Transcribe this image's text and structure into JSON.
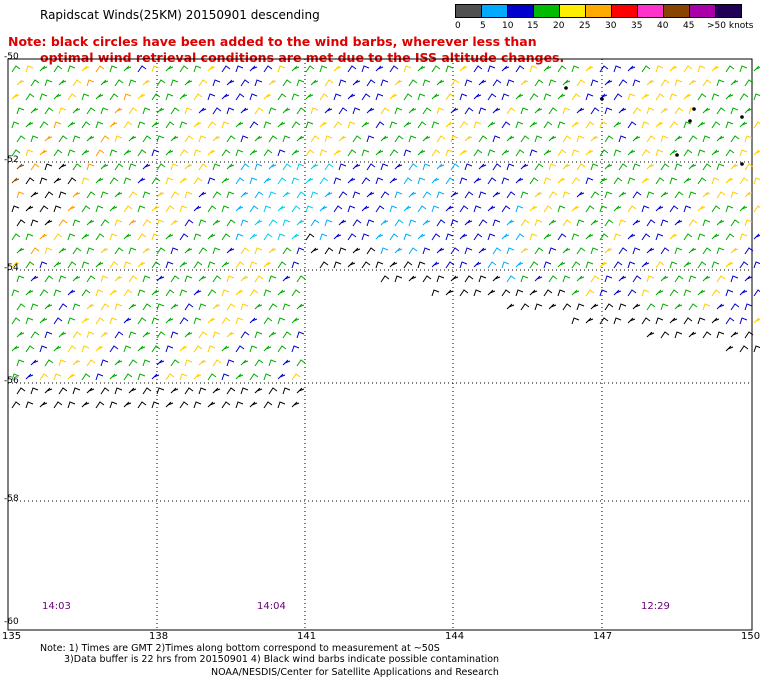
{
  "header": {
    "title": "Rapidscat Winds(25KM) 20150901 descending",
    "note_line1": "Note: black circles have been added to the wind barbs, wherever less than",
    "note_line2": "optimal wind retrieval conditions are met due to the ISS altitude changes."
  },
  "legend": {
    "colors": [
      "#505050",
      "#00aaff",
      "#0000cc",
      "#00bb00",
      "#ffee00",
      "#ffaa00",
      "#ff0000",
      "#ff33cc",
      "#884400",
      "#aa00aa",
      "#220055"
    ],
    "labels": [
      "0",
      "5",
      "10",
      "15",
      "20",
      "25",
      "30",
      "35",
      "40",
      "45",
      ">50 knots"
    ]
  },
  "axes": {
    "lat_ticks": [
      "-50",
      "-52",
      "-54",
      "-56",
      "-58",
      "-60"
    ],
    "lon_ticks": [
      "135",
      "138",
      "141",
      "144",
      "147",
      "150"
    ]
  },
  "times": [
    "14:03",
    "14:04",
    "12:29"
  ],
  "footer": {
    "line1": "Note: 1) Times are GMT 2)Times along bottom correspond to measurement at ~50S",
    "line2": "3)Data buffer is 22 hrs from 20150901 4) Black wind barbs indicate possible contamination",
    "line3": "NOAA/NESDIS/Center for Satellite Applications and Research"
  }
}
